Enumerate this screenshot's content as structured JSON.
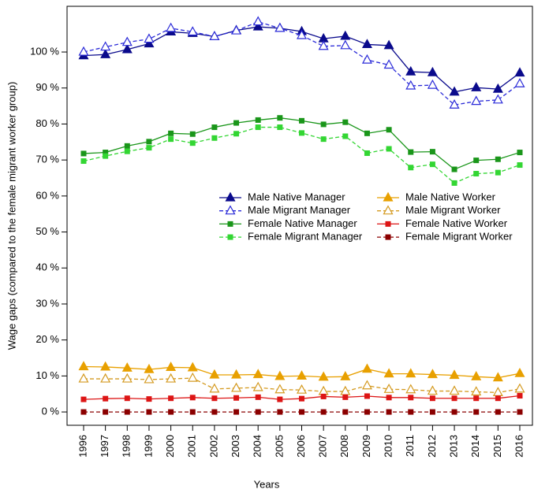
{
  "chart_data": {
    "type": "line",
    "x_label": "Years",
    "y_label": "Wage gaps (compared to the female migrant worker group)",
    "categories": [
      "1996",
      "1997",
      "1998",
      "1999",
      "2000",
      "2001",
      "2002",
      "2003",
      "2004",
      "2005",
      "2006",
      "2007",
      "2008",
      "2009",
      "2010",
      "2011",
      "2012",
      "2013",
      "2014",
      "2015",
      "2016"
    ],
    "ylim": [
      -3.7,
      112.7
    ],
    "yticks": [
      {
        "value": 0,
        "label": "0 %"
      },
      {
        "value": 10,
        "label": "10 %"
      },
      {
        "value": 20,
        "label": "20 %"
      },
      {
        "value": 30,
        "label": "30 %"
      },
      {
        "value": 40,
        "label": "40 %"
      },
      {
        "value": 50,
        "label": "50 %"
      },
      {
        "value": 60,
        "label": "60 %"
      },
      {
        "value": 70,
        "label": "70 %"
      },
      {
        "value": 80,
        "label": "80 %"
      },
      {
        "value": 90,
        "label": "90 %"
      },
      {
        "value": 100,
        "label": "100 %"
      }
    ],
    "series": [
      {
        "name": "Male Native Manager",
        "color": "#0a0a8c",
        "dash": false,
        "marker": "triangle-filled",
        "values": [
          99,
          99.3,
          100.7,
          102.3,
          105.6,
          105.2,
          104.3,
          106,
          107,
          106.6,
          105.7,
          103.7,
          104.4,
          102.1,
          101.8,
          94.5,
          94.3,
          88.9,
          90.1,
          89.7,
          94.2
        ]
      },
      {
        "name": "Male Migrant Manager",
        "color": "#2a2ad8",
        "dash": true,
        "marker": "triangle-open",
        "values": [
          100,
          101.4,
          102.7,
          103.6,
          106.6,
          105.6,
          104.3,
          105.9,
          108.4,
          106.6,
          104.6,
          101.6,
          101.8,
          97.8,
          96.4,
          90.6,
          90.8,
          85.3,
          86.3,
          86.7,
          91.2
        ]
      },
      {
        "name": "Female Native Manager",
        "color": "#1a961a",
        "dash": false,
        "marker": "square",
        "values": [
          71.8,
          72.1,
          73.9,
          75.1,
          77.4,
          77.2,
          79.1,
          80.3,
          81.1,
          81.7,
          80.9,
          79.9,
          80.5,
          77.4,
          78.4,
          72.2,
          72.3,
          67.4,
          69.9,
          70.2,
          72.1
        ]
      },
      {
        "name": "Female Migrant Manager",
        "color": "#33d633",
        "dash": true,
        "marker": "square",
        "values": [
          69.7,
          71.1,
          72.4,
          73.4,
          75.8,
          74.7,
          76.1,
          77.3,
          79.1,
          79.1,
          77.5,
          75.8,
          76.6,
          71.9,
          73.1,
          67.9,
          68.8,
          63.6,
          66.2,
          66.5,
          68.6
        ]
      },
      {
        "name": "Male Native Worker",
        "color": "#e8a000",
        "dash": false,
        "marker": "triangle-filled",
        "values": [
          12.6,
          12.5,
          12.2,
          11.8,
          12.4,
          12.3,
          10.3,
          10.3,
          10.4,
          9.9,
          10,
          9.7,
          9.8,
          11.9,
          10.6,
          10.6,
          10.4,
          10.2,
          9.8,
          9.5,
          10.7
        ]
      },
      {
        "name": "Male Migrant Worker",
        "color": "#d49a20",
        "dash": true,
        "marker": "triangle-open",
        "values": [
          9.2,
          9.2,
          9.2,
          9,
          9.2,
          9.4,
          6.4,
          6.6,
          6.8,
          6.2,
          6.1,
          5.7,
          5.7,
          7.3,
          6.3,
          6.2,
          5.8,
          5.8,
          5.6,
          5.4,
          6.4
        ]
      },
      {
        "name": "Female Native Worker",
        "color": "#dd1515",
        "dash": false,
        "marker": "square",
        "values": [
          3.5,
          3.7,
          3.8,
          3.6,
          3.8,
          4,
          3.8,
          3.9,
          4.1,
          3.5,
          3.7,
          4.3,
          4.1,
          4.4,
          4,
          4,
          3.8,
          3.8,
          3.8,
          3.8,
          4.5
        ]
      },
      {
        "name": "Female Migrant Worker",
        "color": "#8b0000",
        "dash": true,
        "marker": "square",
        "values": [
          0,
          0,
          0,
          0,
          0,
          0,
          0,
          0,
          0,
          0,
          0,
          0,
          0,
          0,
          0,
          0,
          0,
          0,
          0,
          0,
          0
        ]
      }
    ]
  }
}
